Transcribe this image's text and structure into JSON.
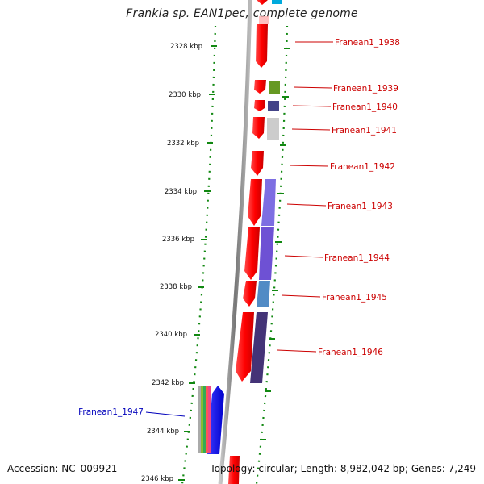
{
  "title": "Frankia sp. EAN1pec, complete genome",
  "footer": {
    "accession": "Accession: NC_009921",
    "topology": "Topology: circular; Length: 8,982,042 bp; Genes: 7,249"
  },
  "scale": {
    "ticks": [
      "2328 kbp",
      "2330 kbp",
      "2332 kbp",
      "2334 kbp",
      "2336 kbp",
      "2338 kbp",
      "2340 kbp",
      "2342 kbp",
      "2344 kbp",
      "2346 kbp"
    ]
  },
  "genes": [
    {
      "label": "Franean1_1938",
      "color": "#cc0000"
    },
    {
      "label": "Franean1_1939",
      "color": "#cc0000"
    },
    {
      "label": "Franean1_1940",
      "color": "#cc0000"
    },
    {
      "label": "Franean1_1941",
      "color": "#cc0000"
    },
    {
      "label": "Franean1_1942",
      "color": "#cc0000"
    },
    {
      "label": "Franean1_1943",
      "color": "#cc0000"
    },
    {
      "label": "Franean1_1944",
      "color": "#cc0000"
    },
    {
      "label": "Franean1_1945",
      "color": "#cc0000"
    },
    {
      "label": "Franean1_1946",
      "color": "#cc0000"
    },
    {
      "label": "Franean1_1947",
      "color": "#0000bb"
    }
  ],
  "colors": {
    "forward_strand": "#ff0000",
    "reverse_strand": "#0000ff",
    "backbone": "#999999",
    "dotted_track": "#118811",
    "forward_label": "#cc0000",
    "reverse_label": "#0000bb"
  }
}
